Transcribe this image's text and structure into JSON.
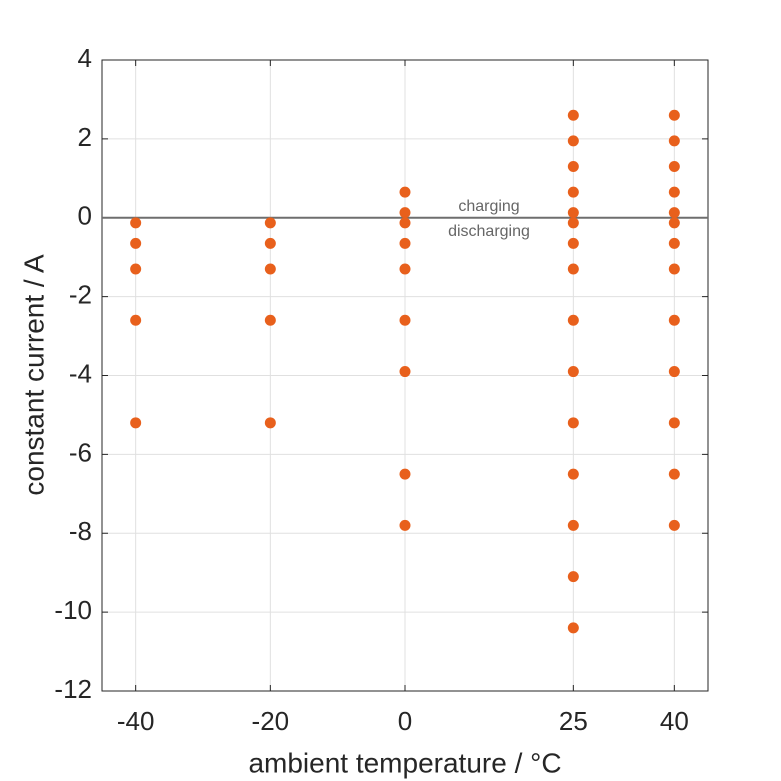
{
  "chart_data": {
    "type": "scatter",
    "xlabel": "ambient temperature / °C",
    "ylabel": "constant current / A",
    "xlim": [
      -45,
      45
    ],
    "ylim": [
      -12,
      4
    ],
    "xticks": [
      -40,
      -20,
      0,
      25,
      40
    ],
    "yticks": [
      -12,
      -10,
      -8,
      -6,
      -4,
      -2,
      0,
      2,
      4
    ],
    "grid": true,
    "reference_line": 0,
    "annotations": [
      "charging",
      "discharging"
    ],
    "series": [
      {
        "color": "#e8601c",
        "x": [
          -40,
          -40,
          -40,
          -40,
          -40,
          -20,
          -20,
          -20,
          -20,
          -20,
          0,
          0,
          0,
          0,
          0,
          0,
          0,
          0,
          0,
          25,
          25,
          25,
          25,
          25,
          25,
          25,
          25,
          25,
          25,
          25,
          25,
          25,
          25,
          25,
          40,
          40,
          40,
          40,
          40,
          40,
          40,
          40,
          40,
          40,
          40,
          40,
          40
        ],
        "values": [
          -0.13,
          -0.65,
          -1.3,
          -2.6,
          -5.2,
          -0.13,
          -0.65,
          -1.3,
          -2.6,
          -5.2,
          0.65,
          0.13,
          -0.13,
          -0.65,
          -1.3,
          -2.6,
          -3.9,
          -6.5,
          -7.8,
          2.6,
          1.95,
          1.3,
          0.65,
          0.13,
          -0.13,
          -0.65,
          -1.3,
          -2.6,
          -3.9,
          -5.2,
          -6.5,
          -7.8,
          -9.1,
          -10.4,
          2.6,
          1.95,
          1.3,
          0.65,
          0.13,
          -0.13,
          -0.65,
          -1.3,
          -2.6,
          -3.9,
          -5.2,
          -6.5,
          -7.8
        ]
      }
    ]
  }
}
